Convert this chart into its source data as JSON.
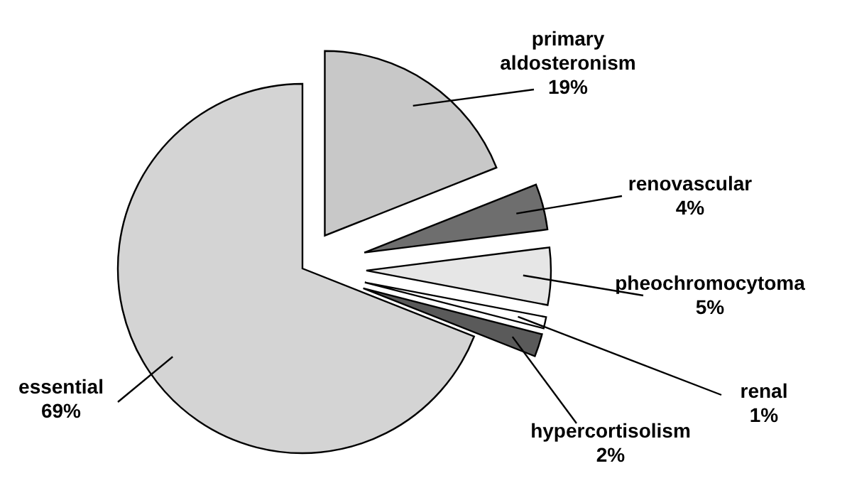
{
  "chart_data": {
    "type": "pie",
    "categories": [
      "primary aldosteronism",
      "renovascular",
      "pheochromocytoma",
      "renal",
      "hypercortisolism",
      "essential"
    ],
    "values": [
      19,
      4,
      5,
      1,
      2,
      69
    ],
    "value_labels": [
      "19%",
      "4%",
      "5%",
      "1%",
      "2%",
      "69%"
    ],
    "colors": [
      "#c8c8c8",
      "#6e6e6e",
      "#e6e6e6",
      "#ffffff",
      "#5a5a5a",
      "#d4d4d4"
    ],
    "legend": false
  }
}
